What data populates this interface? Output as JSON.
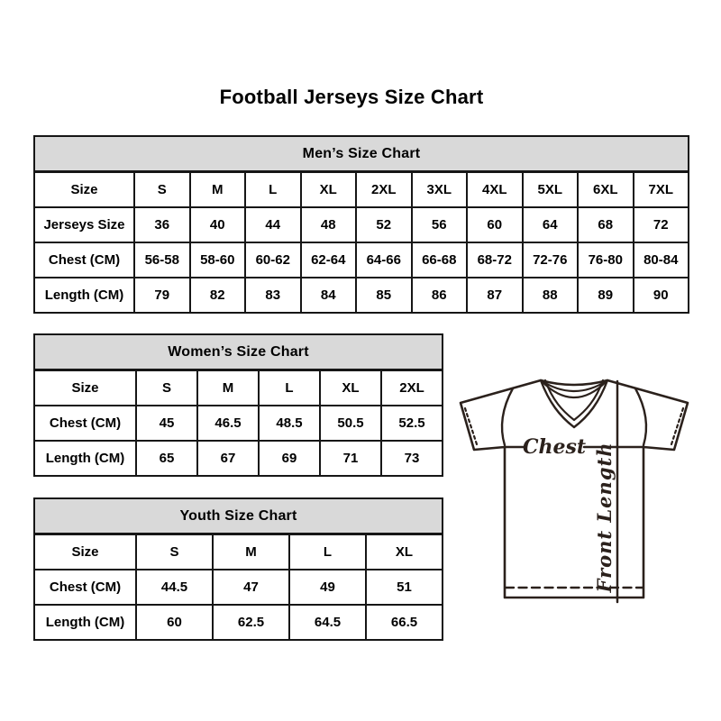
{
  "title": "Football Jerseys Size Chart",
  "chart_data": [
    {
      "type": "table",
      "title": "Men’s Size Chart",
      "rows": [
        [
          "Size",
          "S",
          "M",
          "L",
          "XL",
          "2XL",
          "3XL",
          "4XL",
          "5XL",
          "6XL",
          "7XL"
        ],
        [
          "Jerseys Size",
          "36",
          "40",
          "44",
          "48",
          "52",
          "56",
          "60",
          "64",
          "68",
          "72"
        ],
        [
          "Chest (CM)",
          "56-58",
          "58-60",
          "60-62",
          "62-64",
          "64-66",
          "66-68",
          "68-72",
          "72-76",
          "76-80",
          "80-84"
        ],
        [
          "Length (CM)",
          "79",
          "82",
          "83",
          "84",
          "85",
          "86",
          "87",
          "88",
          "89",
          "90"
        ]
      ]
    },
    {
      "type": "table",
      "title": "Women’s Size Chart",
      "rows": [
        [
          "Size",
          "S",
          "M",
          "L",
          "XL",
          "2XL"
        ],
        [
          "Chest (CM)",
          "45",
          "46.5",
          "48.5",
          "50.5",
          "52.5"
        ],
        [
          "Length (CM)",
          "65",
          "67",
          "69",
          "71",
          "73"
        ]
      ]
    },
    {
      "type": "table",
      "title": "Youth Size Chart",
      "rows": [
        [
          "Size",
          "S",
          "M",
          "L",
          "XL"
        ],
        [
          "Chest (CM)",
          "44.5",
          "47",
          "49",
          "51"
        ],
        [
          "Length (CM)",
          "60",
          "62.5",
          "64.5",
          "66.5"
        ]
      ]
    }
  ],
  "diagram": {
    "chest_label": "Chest",
    "front_length_label": "Front Length"
  },
  "colors": {
    "header_bg": "#d9d9d9",
    "table_border": "#161616",
    "jersey_outline": "#2b211c",
    "text": "#000000"
  }
}
